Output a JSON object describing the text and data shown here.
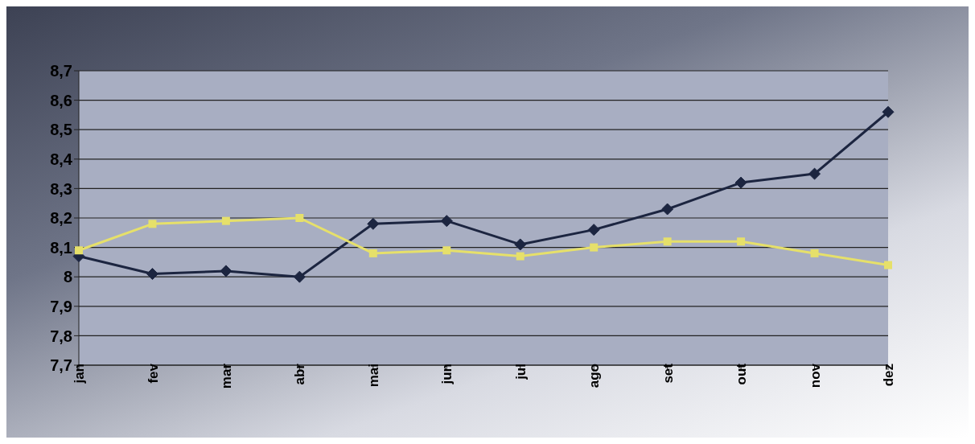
{
  "chart_data": {
    "type": "line",
    "categories": [
      "jan",
      "fev",
      "mar",
      "abr",
      "mai",
      "jun",
      "jul",
      "ago",
      "set",
      "out",
      "nov",
      "dez"
    ],
    "series": [
      {
        "color": "#1c2540",
        "marker": "diamond",
        "values": [
          8.07,
          8.01,
          8.02,
          8.0,
          8.18,
          8.19,
          8.11,
          8.16,
          8.23,
          8.32,
          8.35,
          8.56
        ]
      },
      {
        "color": "#e6e06a",
        "marker": "square",
        "values": [
          8.09,
          8.18,
          8.19,
          8.2,
          8.08,
          8.09,
          8.07,
          8.1,
          8.12,
          8.12,
          8.08,
          8.04
        ]
      }
    ],
    "ylim": [
      7.7,
      8.7
    ],
    "yticks": [
      {
        "value": 7.7,
        "label": "7,7"
      },
      {
        "value": 7.8,
        "label": "7,8"
      },
      {
        "value": 7.9,
        "label": "7,9"
      },
      {
        "value": 8,
        "label": "8"
      },
      {
        "value": 8.1,
        "label": "8,1"
      },
      {
        "value": 8.2,
        "label": "8,2"
      },
      {
        "value": 8.3,
        "label": "8,3"
      },
      {
        "value": 8.4,
        "label": "8,4"
      },
      {
        "value": 8.5,
        "label": "8,5"
      },
      {
        "value": 8.6,
        "label": "8,6"
      },
      {
        "value": 8.7,
        "label": "8,7"
      }
    ],
    "grid": "y",
    "legend": false
  }
}
